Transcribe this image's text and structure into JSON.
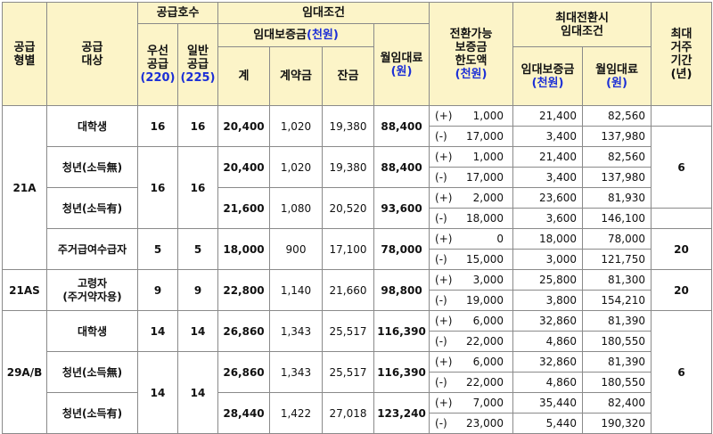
{
  "header": {
    "type_label": "공급\n형별",
    "target_label": "공급\n대상",
    "supply_units": "공급호수",
    "priority_label": "우선\n공급",
    "priority_count": "(220)",
    "general_label": "일반\n공급",
    "general_count": "(225)",
    "lease_cond": "임대조건",
    "deposit_label": "임대보증금",
    "deposit_unit": "(천원)",
    "total": "계",
    "contract": "계약금",
    "balance": "잔금",
    "rent_label": "월임대료",
    "rent_unit": "(원)",
    "conv_label": "전환가능\n보증금\n한도액",
    "conv_unit": "(천원)",
    "max_conv": "최대전환시\n임대조건",
    "max_deposit_label": "임대보증금",
    "max_deposit_unit": "(천원)",
    "max_rent_label": "월임대료",
    "max_rent_unit": "(원)",
    "max_res_label": "최대\n거주\n기간",
    "max_res_unit": "(년)"
  },
  "table": {
    "type_21A": "21A",
    "type_21AS": "21AS",
    "type_29": "29A/B",
    "rows": [
      {
        "target": "대학생",
        "priority": "16",
        "general": "16",
        "total": "20,400",
        "contract": "1,020",
        "balance": "19,380",
        "rent": "88,400",
        "conv": [
          {
            "sign": "(+)",
            "limit": "1,000",
            "deposit": "21,400",
            "rent": "82,560"
          },
          {
            "sign": "(-)",
            "limit": "17,000",
            "deposit": "3,400",
            "rent": "137,980"
          }
        ]
      },
      {
        "target": "청년(소득無)",
        "priority": "16",
        "general": "16",
        "total": "20,400",
        "contract": "1,020",
        "balance": "19,380",
        "rent": "88,400",
        "conv": [
          {
            "sign": "(+)",
            "limit": "1,000",
            "deposit": "21,400",
            "rent": "82,560"
          },
          {
            "sign": "(-)",
            "limit": "17,000",
            "deposit": "3,400",
            "rent": "137,980"
          }
        ]
      },
      {
        "target": "청년(소득有)",
        "total": "21,600",
        "contract": "1,080",
        "balance": "20,520",
        "rent": "93,600",
        "conv": [
          {
            "sign": "(+)",
            "limit": "2,000",
            "deposit": "23,600",
            "rent": "81,930"
          },
          {
            "sign": "(-)",
            "limit": "18,000",
            "deposit": "3,600",
            "rent": "146,100"
          }
        ]
      },
      {
        "target": "주거급여수급자",
        "priority": "5",
        "general": "5",
        "total": "18,000",
        "contract": "900",
        "balance": "17,100",
        "rent": "78,000",
        "conv": [
          {
            "sign": "(+)",
            "limit": "0",
            "deposit": "18,000",
            "rent": "78,000"
          },
          {
            "sign": "(-)",
            "limit": "15,000",
            "deposit": "3,000",
            "rent": "121,750"
          }
        ]
      },
      {
        "target": "고령자\n(주거약자용)",
        "priority": "9",
        "general": "9",
        "total": "22,800",
        "contract": "1,140",
        "balance": "21,660",
        "rent": "98,800",
        "conv": [
          {
            "sign": "(+)",
            "limit": "3,000",
            "deposit": "25,800",
            "rent": "81,300"
          },
          {
            "sign": "(-)",
            "limit": "19,000",
            "deposit": "3,800",
            "rent": "154,210"
          }
        ]
      },
      {
        "target": "대학생",
        "priority": "14",
        "general": "14",
        "total": "26,860",
        "contract": "1,343",
        "balance": "25,517",
        "rent": "116,390",
        "conv": [
          {
            "sign": "(+)",
            "limit": "6,000",
            "deposit": "32,860",
            "rent": "81,390"
          },
          {
            "sign": "(-)",
            "limit": "22,000",
            "deposit": "4,860",
            "rent": "180,550"
          }
        ]
      },
      {
        "target": "청년(소득無)",
        "priority": "14",
        "general": "14",
        "total": "26,860",
        "contract": "1,343",
        "balance": "25,517",
        "rent": "116,390",
        "conv": [
          {
            "sign": "(+)",
            "limit": "6,000",
            "deposit": "32,860",
            "rent": "81,390"
          },
          {
            "sign": "(-)",
            "limit": "22,000",
            "deposit": "4,860",
            "rent": "180,550"
          }
        ]
      },
      {
        "target": "청년(소득有)",
        "total": "28,440",
        "contract": "1,422",
        "balance": "27,018",
        "rent": "123,240",
        "conv": [
          {
            "sign": "(+)",
            "limit": "7,000",
            "deposit": "35,440",
            "rent": "82,400"
          },
          {
            "sign": "(-)",
            "limit": "23,000",
            "deposit": "5,440",
            "rent": "190,320"
          }
        ]
      }
    ],
    "residence": {
      "g1": "6",
      "g2": "20",
      "g3": "20",
      "g4": "6"
    }
  }
}
